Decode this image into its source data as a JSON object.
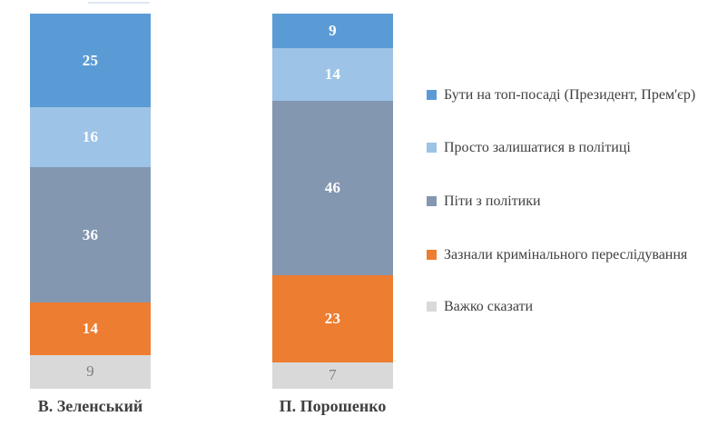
{
  "chart_data": {
    "type": "bar",
    "subtype": "stacked-100-percent",
    "orientation": "vertical-columns",
    "title": "",
    "categories": [
      "В. Зеленський",
      "П. Порошенко"
    ],
    "series": [
      {
        "name": "Бути на топ-посаді (Президент, Прем'єр)",
        "color": "#5B9BD5",
        "label_color": "#FFFFFF",
        "values": [
          25,
          9
        ]
      },
      {
        "name": "Просто залишатися в політиці",
        "color": "#9DC3E6",
        "label_color": "#FFFFFF",
        "values": [
          16,
          14
        ]
      },
      {
        "name": "Піти з політики",
        "color": "#8497B0",
        "label_color": "#FFFFFF",
        "values": [
          36,
          46
        ]
      },
      {
        "name": "Зазнали кримінального переслідування",
        "color": "#ED7D31",
        "label_color": "#FFFFFF",
        "values": [
          14,
          23
        ]
      },
      {
        "name": "Важко сказати",
        "color": "#D9D9D9",
        "label_color": "#7F7F7F",
        "values": [
          9,
          7
        ]
      }
    ],
    "data_labels": true,
    "legend_position": "right",
    "axes_visible": false,
    "gridlines": false,
    "category_label_color": "#404040",
    "background_color": "#FFFFFF"
  }
}
